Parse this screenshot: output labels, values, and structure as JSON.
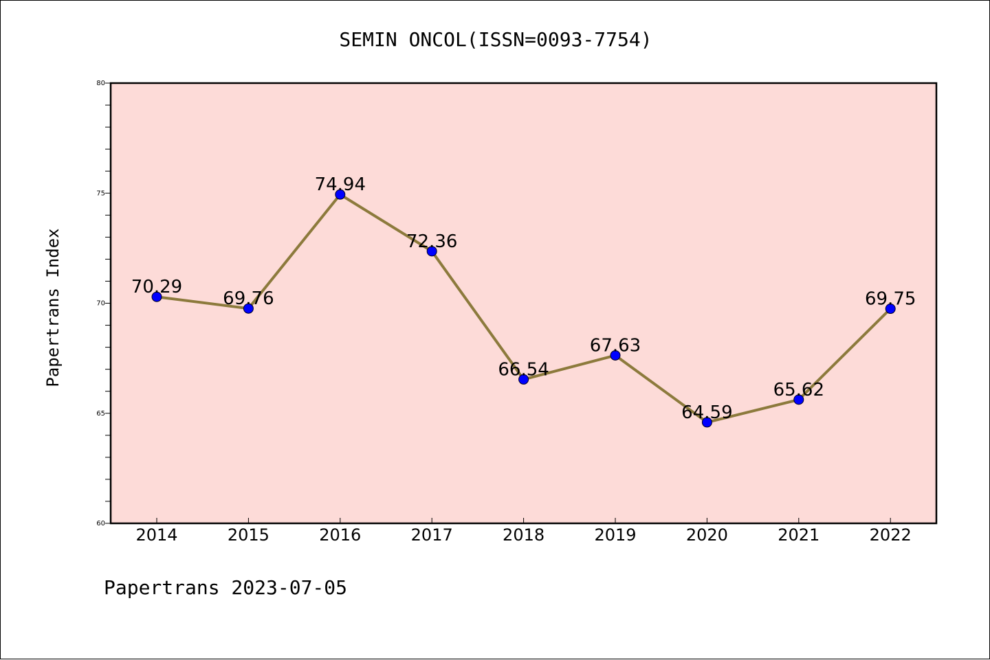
{
  "chart_data": {
    "type": "line",
    "title": "SEMIN ONCOL(ISSN=0093-7754)",
    "ylabel": "Papertrans Index",
    "xlabel": "",
    "categories": [
      "2014",
      "2015",
      "2016",
      "2017",
      "2018",
      "2019",
      "2020",
      "2021",
      "2022"
    ],
    "values": [
      70.29,
      69.76,
      74.94,
      72.36,
      66.54,
      67.63,
      64.59,
      65.62,
      69.75
    ],
    "data_labels": [
      "70.29",
      "69.76",
      "74.94",
      "72.36",
      "66.54",
      "67.63",
      "64.59",
      "65.62",
      "69.75"
    ],
    "ylim": [
      60,
      80
    ],
    "yticks": [
      "60",
      "65",
      "70",
      "75",
      "80"
    ],
    "grid": false,
    "legend": "none",
    "colors": {
      "plot_background": "#fddbd8",
      "line": "#8c7a3c",
      "marker": "#0000ff"
    }
  },
  "footer": {
    "text": "Papertrans 2023-07-05"
  }
}
